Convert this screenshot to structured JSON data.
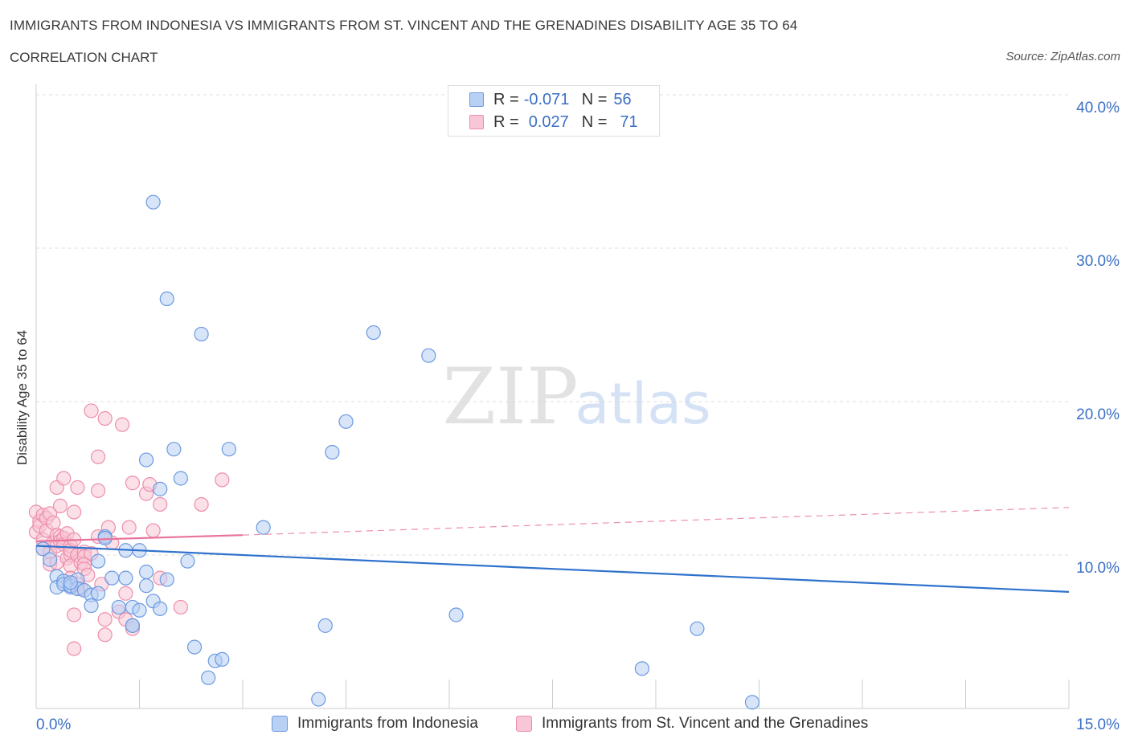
{
  "header": {
    "title": "IMMIGRANTS FROM INDONESIA VS IMMIGRANTS FROM ST. VINCENT AND THE GRENADINES DISABILITY AGE 35 TO 64",
    "subtitle": "CORRELATION CHART",
    "source": "Source: ZipAtlas.com"
  },
  "watermark": {
    "zip": "ZIP",
    "atlas": "atlas"
  },
  "legend": {
    "rows": [
      {
        "r_label": "R =",
        "r_value": "-0.071",
        "n_label": "N =",
        "n_value": "56"
      },
      {
        "r_label": "R =",
        "r_value": "0.027",
        "n_label": "N =",
        "n_value": "71"
      }
    ]
  },
  "colors": {
    "blue_fill": "#b8d0f4",
    "blue_stroke": "#6b9ae0",
    "blue_line": "#2f72cc",
    "pink_fill": "#f8c6d6",
    "pink_stroke": "#ee8eac",
    "pink_line": "#e8739a",
    "grid": "#dcdcdc",
    "tick_text": "#3b6fc4"
  },
  "chart_data": {
    "type": "scatter",
    "title": "IMMIGRANTS FROM INDONESIA VS IMMIGRANTS FROM ST. VINCENT AND THE GRENADINES DISABILITY AGE 35 TO 64",
    "xlabel": "",
    "ylabel": "Disability Age 35 to 64",
    "xlim": [
      0,
      15
    ],
    "ylim": [
      0,
      40
    ],
    "x_tick_labels": [
      "0.0%",
      "15.0%"
    ],
    "y_ticks": [
      10,
      20,
      30,
      40
    ],
    "y_tick_labels": [
      "10.0%",
      "20.0%",
      "30.0%",
      "40.0%"
    ],
    "grid": true,
    "legend_position": "top-center",
    "series": [
      {
        "name": "Immigrants from Indonesia",
        "color": "#6b9ae0",
        "trend": {
          "x": [
            0,
            15
          ],
          "y": [
            10.6,
            7.6
          ],
          "style": "solid"
        },
        "points": [
          [
            0.1,
            10.4
          ],
          [
            0.2,
            9.7
          ],
          [
            0.3,
            8.6
          ],
          [
            0.3,
            7.9
          ],
          [
            0.4,
            8.3
          ],
          [
            0.4,
            8.1
          ],
          [
            0.5,
            7.9
          ],
          [
            0.5,
            8.0
          ],
          [
            0.6,
            8.4
          ],
          [
            0.6,
            7.8
          ],
          [
            0.7,
            7.7
          ],
          [
            0.8,
            7.4
          ],
          [
            0.8,
            6.7
          ],
          [
            0.9,
            9.6
          ],
          [
            0.9,
            7.5
          ],
          [
            1.0,
            11.2
          ],
          [
            1.0,
            11.1
          ],
          [
            1.1,
            8.5
          ],
          [
            1.2,
            6.6
          ],
          [
            1.3,
            8.5
          ],
          [
            1.3,
            10.3
          ],
          [
            1.4,
            5.4
          ],
          [
            1.4,
            6.6
          ],
          [
            1.4,
            5.4
          ],
          [
            1.5,
            10.3
          ],
          [
            1.5,
            6.4
          ],
          [
            1.6,
            8.9
          ],
          [
            1.6,
            16.2
          ],
          [
            1.6,
            8.0
          ],
          [
            1.7,
            33.0
          ],
          [
            1.7,
            7.0
          ],
          [
            1.8,
            14.3
          ],
          [
            1.8,
            6.5
          ],
          [
            1.9,
            8.4
          ],
          [
            1.9,
            26.7
          ],
          [
            2.0,
            16.9
          ],
          [
            2.1,
            15.0
          ],
          [
            2.2,
            9.6
          ],
          [
            2.3,
            4.0
          ],
          [
            2.4,
            24.4
          ],
          [
            2.5,
            2.0
          ],
          [
            2.6,
            3.1
          ],
          [
            2.7,
            3.2
          ],
          [
            2.8,
            16.9
          ],
          [
            3.3,
            11.8
          ],
          [
            4.1,
            0.6
          ],
          [
            4.2,
            5.4
          ],
          [
            4.3,
            16.7
          ],
          [
            4.5,
            18.7
          ],
          [
            4.9,
            24.5
          ],
          [
            5.7,
            23.0
          ],
          [
            6.1,
            6.1
          ],
          [
            8.8,
            2.6
          ],
          [
            9.6,
            5.2
          ],
          [
            10.4,
            0.4
          ],
          [
            0.5,
            8.2
          ]
        ]
      },
      {
        "name": "Immigrants from St. Vincent and the Grenadines",
        "color": "#ee8eac",
        "trend": {
          "x": [
            0,
            3
          ],
          "y": [
            10.9,
            11.3
          ],
          "dashed_x": [
            3,
            15
          ],
          "dashed_y": [
            11.3,
            13.1
          ],
          "style": "solid-then-dashed"
        },
        "points": [
          [
            0.0,
            12.8
          ],
          [
            0.0,
            11.5
          ],
          [
            0.05,
            12.2
          ],
          [
            0.05,
            11.9
          ],
          [
            0.1,
            12.6
          ],
          [
            0.1,
            11.0
          ],
          [
            0.1,
            10.4
          ],
          [
            0.15,
            12.4
          ],
          [
            0.15,
            11.6
          ],
          [
            0.2,
            12.7
          ],
          [
            0.2,
            10.2
          ],
          [
            0.2,
            9.4
          ],
          [
            0.25,
            12.1
          ],
          [
            0.25,
            10.8
          ],
          [
            0.3,
            11.3
          ],
          [
            0.3,
            10.6
          ],
          [
            0.3,
            9.5
          ],
          [
            0.3,
            14.4
          ],
          [
            0.35,
            13.2
          ],
          [
            0.35,
            11.2
          ],
          [
            0.35,
            10.9
          ],
          [
            0.4,
            15.0
          ],
          [
            0.4,
            11.1
          ],
          [
            0.4,
            10.7
          ],
          [
            0.45,
            9.8
          ],
          [
            0.45,
            11.4
          ],
          [
            0.5,
            10.0
          ],
          [
            0.5,
            9.3
          ],
          [
            0.5,
            8.5
          ],
          [
            0.5,
            10.6
          ],
          [
            0.5,
            10.3
          ],
          [
            0.55,
            12.8
          ],
          [
            0.55,
            11.0
          ],
          [
            0.55,
            6.1
          ],
          [
            0.55,
            3.9
          ],
          [
            0.6,
            14.4
          ],
          [
            0.6,
            10.0
          ],
          [
            0.6,
            8.1
          ],
          [
            0.65,
            9.5
          ],
          [
            0.65,
            7.8
          ],
          [
            0.7,
            10.2
          ],
          [
            0.7,
            9.9
          ],
          [
            0.7,
            9.4
          ],
          [
            0.7,
            9.1
          ],
          [
            0.75,
            8.7
          ],
          [
            0.8,
            19.4
          ],
          [
            0.8,
            10.1
          ],
          [
            0.9,
            16.4
          ],
          [
            0.9,
            14.2
          ],
          [
            0.9,
            11.2
          ],
          [
            0.95,
            8.1
          ],
          [
            1.0,
            18.9
          ],
          [
            1.0,
            5.8
          ],
          [
            1.0,
            4.8
          ],
          [
            1.05,
            11.8
          ],
          [
            1.1,
            10.8
          ],
          [
            1.2,
            6.3
          ],
          [
            1.25,
            18.5
          ],
          [
            1.3,
            7.5
          ],
          [
            1.3,
            5.8
          ],
          [
            1.35,
            11.8
          ],
          [
            1.4,
            14.7
          ],
          [
            1.4,
            5.2
          ],
          [
            1.6,
            14.0
          ],
          [
            1.65,
            14.6
          ],
          [
            1.7,
            11.6
          ],
          [
            1.8,
            13.3
          ],
          [
            1.8,
            8.5
          ],
          [
            2.1,
            6.6
          ],
          [
            2.4,
            13.3
          ],
          [
            2.7,
            14.9
          ]
        ]
      }
    ]
  },
  "bottom_legend": {
    "items": [
      {
        "label": "Immigrants from Indonesia"
      },
      {
        "label": "Immigrants from St. Vincent and the Grenadines"
      }
    ]
  }
}
